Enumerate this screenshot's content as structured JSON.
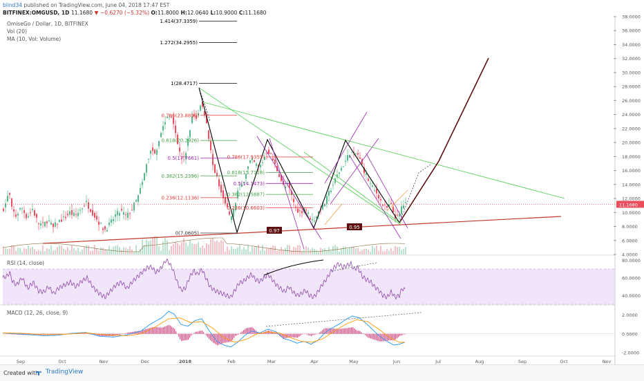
{
  "header": {
    "user": "blind34",
    "published": "published on TradingView.com, June 04, 2018 17:47 EST",
    "symbol": "BITFINEX:OMGUSD, 1D",
    "open_label": "O:",
    "open": "11.8000",
    "high_label": "H:",
    "high": "12.0640",
    "low_label": "L:",
    "low": "10.9000",
    "close_label": "C:",
    "close": "11.1680",
    "change": "−0.6270 (−5.32%)"
  },
  "legends": {
    "symbol_name": "OmiseGo / Dollar, 1D, BITFINEX",
    "vol": "Vol (20)",
    "ma": "MA (10, Vol: Volume)",
    "rsi": "RSI (14, close)",
    "macd": "MACD (12, 26, close, 9)"
  },
  "footer": {
    "created": "Created with",
    "brand": "TradingView"
  },
  "colors": {
    "up": "#53b987",
    "down": "#eb4d5c",
    "pattern": "#000000",
    "trend_red": "#c0392b",
    "green_line": "#5ad35a",
    "purple_channel": "#9c27b0",
    "fib_red": "#e53935",
    "fib_green": "#43a047",
    "fib_purple": "#9c27b0",
    "rsi": "#8e44ad",
    "rsi_band": "#e8d5f5",
    "macd": "#2196f3",
    "signal": "#ff9800",
    "hist": "#e91e63",
    "arrow": "#5d0f0f"
  },
  "chart_data": [
    {
      "type": "candlestick",
      "x_labels": [
        "Sep",
        "Oct",
        "Nov",
        "Dec",
        "2018",
        "Feb",
        "Mar",
        "Apr",
        "May",
        "Jun",
        "Jul",
        "Aug",
        "Sep",
        "Oct",
        "Nov"
      ],
      "yticks": [
        "38.0000",
        "36.0000",
        "34.0000",
        "32.0000",
        "30.0000",
        "28.0000",
        "26.0000",
        "24.0000",
        "22.0000",
        "20.0000",
        "18.0000",
        "16.0000",
        "14.0000",
        "12.0000",
        "10.0000",
        "8.0000",
        "6.0000",
        "4.0000"
      ],
      "ylim": [
        4,
        38
      ],
      "last_price": "11.1680",
      "price_path": [
        [
          0,
          10.2
        ],
        [
          6,
          11.5
        ],
        [
          10,
          13
        ],
        [
          14,
          10.5
        ],
        [
          20,
          9.5
        ],
        [
          28,
          10.8
        ],
        [
          36,
          9.3
        ],
        [
          44,
          10.5
        ],
        [
          52,
          8.5
        ],
        [
          60,
          8.2
        ],
        [
          66,
          9
        ],
        [
          74,
          7.8
        ],
        [
          80,
          8.6
        ],
        [
          90,
          9.2
        ],
        [
          98,
          10
        ],
        [
          106,
          9.5
        ],
        [
          114,
          10.5
        ],
        [
          122,
          11.4
        ],
        [
          132,
          9.8
        ],
        [
          140,
          8.6
        ],
        [
          148,
          7.5
        ],
        [
          156,
          8.3
        ],
        [
          164,
          9.6
        ],
        [
          172,
          10.2
        ],
        [
          180,
          9.4
        ],
        [
          188,
          10.5
        ],
        [
          196,
          12
        ],
        [
          204,
          14.5
        ],
        [
          210,
          17.3
        ],
        [
          216,
          19
        ],
        [
          222,
          18.6
        ],
        [
          230,
          21.5
        ],
        [
          238,
          23.5
        ],
        [
          246,
          24
        ],
        [
          252,
          21
        ],
        [
          258,
          18
        ],
        [
          264,
          17.5
        ],
        [
          270,
          21
        ],
        [
          276,
          24
        ],
        [
          282,
          23.5
        ],
        [
          288,
          25.5
        ],
        [
          294,
          24
        ],
        [
          300,
          20
        ],
        [
          306,
          16.5
        ],
        [
          312,
          14.5
        ],
        [
          318,
          13
        ],
        [
          324,
          11.2
        ],
        [
          330,
          9
        ],
        [
          336,
          10.5
        ],
        [
          342,
          13.5
        ],
        [
          348,
          14
        ],
        [
          354,
          16
        ],
        [
          360,
          17.5
        ],
        [
          366,
          17
        ],
        [
          372,
          16.3
        ],
        [
          378,
          17.5
        ],
        [
          384,
          19
        ],
        [
          390,
          18
        ],
        [
          396,
          16.5
        ],
        [
          402,
          15.2
        ],
        [
          408,
          13.5
        ],
        [
          414,
          14
        ],
        [
          420,
          12
        ],
        [
          426,
          10.5
        ],
        [
          432,
          10
        ],
        [
          438,
          10.8
        ],
        [
          444,
          9.5
        ],
        [
          450,
          8.8
        ],
        [
          456,
          9.7
        ],
        [
          462,
          10.8
        ],
        [
          468,
          11.5
        ],
        [
          474,
          13
        ],
        [
          480,
          14.2
        ],
        [
          486,
          15.5
        ],
        [
          492,
          16.5
        ],
        [
          498,
          17.5
        ],
        [
          504,
          18.8
        ],
        [
          508,
          18.2
        ],
        [
          514,
          18.5
        ],
        [
          520,
          17
        ],
        [
          526,
          15.5
        ],
        [
          532,
          14.2
        ],
        [
          538,
          13.2
        ],
        [
          544,
          12.6
        ],
        [
          550,
          11.2
        ],
        [
          556,
          10.5
        ],
        [
          562,
          11.2
        ],
        [
          568,
          9.5
        ],
        [
          574,
          9.2
        ],
        [
          578,
          10.8
        ],
        [
          582,
          11.2
        ]
      ],
      "annotations": {
        "fib_upper": [
          {
            "label": "1.414(37.3359)",
            "value": 37.3359
          },
          {
            "label": "1.272(34.2955)",
            "value": 34.2955
          },
          {
            "label": "1(28.4717)",
            "value": 28.4717
          }
        ],
        "fib_main": [
          {
            "label": "0.786(23.8897)",
            "value": 23.8897,
            "color": "#e53935"
          },
          {
            "label": "0.618(20.2926)",
            "value": 20.2926,
            "color": "#43a047"
          },
          {
            "label": "0.5(17.7661)",
            "value": 17.7661,
            "color": "#9c27b0"
          },
          {
            "label": "0.382(15.2396)",
            "value": 15.2396,
            "color": "#43a047"
          },
          {
            "label": "0.236(12.1136)",
            "value": 12.1136,
            "color": "#e53935"
          },
          {
            "label": "0(7.0605)",
            "value": 7.0605,
            "color": "#333333"
          }
        ],
        "fib_second": [
          {
            "label": "0.786(17.9355)",
            "value": 17.9355,
            "color": "#e53935"
          },
          {
            "label": "0.618(15.7118)",
            "value": 15.7118,
            "color": "#43a047"
          },
          {
            "label": "0.5(14.1473)",
            "value": 14.1473,
            "color": "#9c27b0"
          },
          {
            "label": "0.382(12.5887)",
            "value": 12.5887,
            "color": "#43a047"
          },
          {
            "label": "0.236(10.6603)",
            "value": 10.6603,
            "color": "#e53935"
          }
        ],
        "trend_labels": [
          "0.97",
          "0.95"
        ]
      }
    },
    {
      "type": "line",
      "name": "RSI",
      "yticks": [
        "80.0000",
        "60.0000",
        "40.0000"
      ],
      "ylim": [
        30,
        85
      ],
      "band": [
        30,
        70
      ],
      "values": [
        [
          0,
          60
        ],
        [
          6,
          62
        ],
        [
          10,
          66
        ],
        [
          14,
          56
        ],
        [
          20,
          52
        ],
        [
          28,
          60
        ],
        [
          36,
          48
        ],
        [
          44,
          55
        ],
        [
          52,
          45
        ],
        [
          60,
          44
        ],
        [
          66,
          50
        ],
        [
          74,
          42
        ],
        [
          80,
          48
        ],
        [
          90,
          52
        ],
        [
          98,
          55
        ],
        [
          106,
          50
        ],
        [
          114,
          56
        ],
        [
          122,
          60
        ],
        [
          132,
          48
        ],
        [
          140,
          42
        ],
        [
          148,
          38
        ],
        [
          156,
          45
        ],
        [
          164,
          52
        ],
        [
          172,
          55
        ],
        [
          180,
          48
        ],
        [
          188,
          56
        ],
        [
          196,
          62
        ],
        [
          204,
          68
        ],
        [
          210,
          72
        ],
        [
          216,
          72
        ],
        [
          222,
          66
        ],
        [
          230,
          72
        ],
        [
          236,
          80
        ],
        [
          240,
          78
        ],
        [
          246,
          70
        ],
        [
          252,
          56
        ],
        [
          258,
          46
        ],
        [
          264,
          48
        ],
        [
          270,
          60
        ],
        [
          276,
          68
        ],
        [
          282,
          64
        ],
        [
          288,
          70
        ],
        [
          294,
          60
        ],
        [
          300,
          50
        ],
        [
          306,
          46
        ],
        [
          312,
          44
        ],
        [
          318,
          42
        ],
        [
          324,
          40
        ],
        [
          330,
          38
        ],
        [
          336,
          46
        ],
        [
          342,
          54
        ],
        [
          348,
          56
        ],
        [
          354,
          60
        ],
        [
          360,
          64
        ],
        [
          366,
          58
        ],
        [
          372,
          56
        ],
        [
          378,
          60
        ],
        [
          384,
          64
        ],
        [
          390,
          58
        ],
        [
          396,
          52
        ],
        [
          402,
          48
        ],
        [
          408,
          44
        ],
        [
          414,
          50
        ],
        [
          420,
          44
        ],
        [
          426,
          40
        ],
        [
          432,
          42
        ],
        [
          438,
          46
        ],
        [
          444,
          40
        ],
        [
          450,
          38
        ],
        [
          456,
          44
        ],
        [
          462,
          52
        ],
        [
          468,
          58
        ],
        [
          474,
          66
        ],
        [
          480,
          72
        ],
        [
          486,
          76
        ],
        [
          492,
          72
        ],
        [
          498,
          74
        ],
        [
          504,
          76
        ],
        [
          508,
          70
        ],
        [
          514,
          72
        ],
        [
          520,
          62
        ],
        [
          526,
          58
        ],
        [
          532,
          56
        ],
        [
          538,
          50
        ],
        [
          544,
          46
        ],
        [
          550,
          40
        ],
        [
          556,
          38
        ],
        [
          562,
          44
        ],
        [
          568,
          38
        ],
        [
          574,
          40
        ],
        [
          578,
          48
        ],
        [
          582,
          46
        ]
      ]
    },
    {
      "type": "line",
      "name": "MACD",
      "yticks": [
        "2.0000",
        "0.0000",
        "-2.0000"
      ],
      "ylim": [
        -2.3,
        3.0
      ],
      "macd": [
        [
          0,
          0.1
        ],
        [
          20,
          0.0
        ],
        [
          40,
          -0.1
        ],
        [
          60,
          -0.2
        ],
        [
          80,
          -0.15
        ],
        [
          100,
          0.05
        ],
        [
          120,
          0.15
        ],
        [
          140,
          -0.25
        ],
        [
          160,
          -0.35
        ],
        [
          180,
          -0.1
        ],
        [
          200,
          0.3
        ],
        [
          215,
          1.1
        ],
        [
          230,
          1.7
        ],
        [
          240,
          2.4
        ],
        [
          248,
          2.1
        ],
        [
          258,
          1.0
        ],
        [
          268,
          0.8
        ],
        [
          278,
          1.4
        ],
        [
          288,
          1.6
        ],
        [
          298,
          0.4
        ],
        [
          310,
          -0.8
        ],
        [
          320,
          -1.2
        ],
        [
          330,
          -1.4
        ],
        [
          340,
          -0.9
        ],
        [
          350,
          -0.2
        ],
        [
          360,
          0.3
        ],
        [
          372,
          0.1
        ],
        [
          384,
          0.5
        ],
        [
          396,
          0.2
        ],
        [
          406,
          -0.5
        ],
        [
          416,
          -0.7
        ],
        [
          426,
          -1.0
        ],
        [
          436,
          -0.8
        ],
        [
          446,
          -1.1
        ],
        [
          456,
          -0.7
        ],
        [
          466,
          0.1
        ],
        [
          476,
          0.6
        ],
        [
          486,
          1.0
        ],
        [
          496,
          1.5
        ],
        [
          506,
          1.9
        ],
        [
          516,
          1.7
        ],
        [
          526,
          1.1
        ],
        [
          536,
          0.4
        ],
        [
          546,
          -0.3
        ],
        [
          556,
          -0.8
        ],
        [
          566,
          -1.2
        ],
        [
          574,
          -1.1
        ],
        [
          582,
          -0.9
        ]
      ],
      "signal": [
        [
          0,
          0.1
        ],
        [
          30,
          0.05
        ],
        [
          60,
          -0.1
        ],
        [
          90,
          -0.05
        ],
        [
          120,
          0.1
        ],
        [
          150,
          -0.1
        ],
        [
          180,
          -0.2
        ],
        [
          200,
          0.0
        ],
        [
          220,
          0.7
        ],
        [
          240,
          1.6
        ],
        [
          256,
          1.7
        ],
        [
          272,
          1.2
        ],
        [
          288,
          1.3
        ],
        [
          304,
          0.6
        ],
        [
          320,
          -0.4
        ],
        [
          336,
          -0.9
        ],
        [
          352,
          -0.6
        ],
        [
          368,
          0.0
        ],
        [
          384,
          0.2
        ],
        [
          400,
          0.1
        ],
        [
          416,
          -0.4
        ],
        [
          432,
          -0.8
        ],
        [
          448,
          -0.9
        ],
        [
          464,
          -0.5
        ],
        [
          480,
          0.3
        ],
        [
          496,
          1.0
        ],
        [
          512,
          1.5
        ],
        [
          528,
          1.3
        ],
        [
          544,
          0.5
        ],
        [
          560,
          -0.4
        ],
        [
          574,
          -0.9
        ],
        [
          582,
          -0.9
        ]
      ]
    }
  ]
}
